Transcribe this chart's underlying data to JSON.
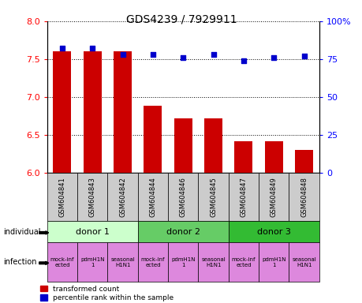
{
  "title": "GDS4239 / 7929911",
  "samples": [
    "GSM604841",
    "GSM604843",
    "GSM604842",
    "GSM604844",
    "GSM604846",
    "GSM604845",
    "GSM604847",
    "GSM604849",
    "GSM604848"
  ],
  "bar_values": [
    7.6,
    7.6,
    7.6,
    6.88,
    6.72,
    6.72,
    6.42,
    6.42,
    6.3
  ],
  "dot_values": [
    82,
    82,
    78,
    78,
    76,
    78,
    74,
    76,
    77
  ],
  "ylim_left": [
    6.0,
    8.0
  ],
  "ylim_right": [
    0,
    100
  ],
  "yticks_left": [
    6.0,
    6.5,
    7.0,
    7.5,
    8.0
  ],
  "yticks_right": [
    0,
    25,
    50,
    75,
    100
  ],
  "bar_color": "#cc0000",
  "dot_color": "#0000cc",
  "donors": [
    {
      "label": "donor 1",
      "start": 0,
      "end": 3,
      "color": "#ccffcc"
    },
    {
      "label": "donor 2",
      "start": 3,
      "end": 6,
      "color": "#66cc66"
    },
    {
      "label": "donor 3",
      "start": 6,
      "end": 9,
      "color": "#33bb33"
    }
  ],
  "inf_labels": [
    "mock-inf\nected",
    "pdmH1N\n1",
    "seasonal\nH1N1",
    "mock-inf\nected",
    "pdmH1N\n1",
    "seasonal\nH1N1",
    "mock-inf\nected",
    "pdmH1N\n1",
    "seasonal\nH1N1"
  ],
  "inf_color": "#dd88dd",
  "sample_box_color": "#cccccc",
  "legend_red_label": "transformed count",
  "legend_blue_label": "percentile rank within the sample",
  "individual_label": "individual",
  "infection_label": "infection",
  "right_tick_labels": [
    "0",
    "25",
    "50",
    "75",
    "100%"
  ]
}
